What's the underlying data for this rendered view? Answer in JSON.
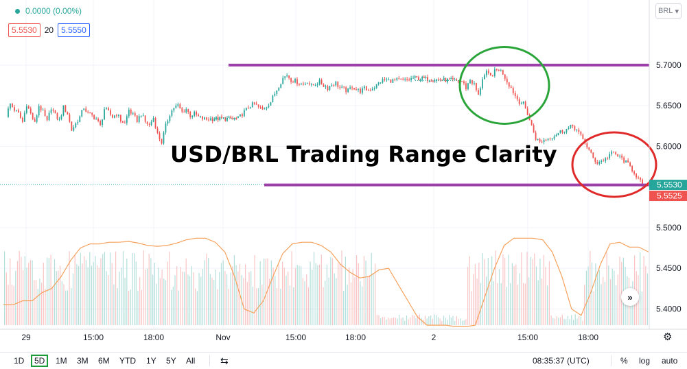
{
  "legend": {
    "change": "0.0000 (0.00%)"
  },
  "indicators": {
    "ma_left": "5.5530",
    "ma_length": "20",
    "ma_right": "5.5550"
  },
  "currency_button": "BRL",
  "annotation_title": "USD/BRL Trading Range Clarity",
  "toolbar": {
    "ranges": [
      "1D",
      "5D",
      "1M",
      "3M",
      "6M",
      "YTD",
      "1Y",
      "5Y",
      "All"
    ],
    "active_range": "5D",
    "clock": "08:35:37 (UTC)",
    "percent": "%",
    "log": "log",
    "auto": "auto"
  },
  "chart_data": {
    "type": "candlestick",
    "title": "USD/BRL Trading Range Clarity",
    "x_tick_labels": [
      "29",
      "15:00",
      "18:00",
      "Nov",
      "15:00",
      "18:00",
      "2",
      "15:00",
      "18:00"
    ],
    "y_tick_labels": [
      "5.7000",
      "5.6500",
      "5.6000",
      "5.5000",
      "5.4500",
      "5.4000"
    ],
    "ylim": [
      5.375,
      5.78
    ],
    "price_labels": [
      {
        "value": 5.553,
        "text": "5.5530",
        "color": "#26a69a"
      },
      {
        "value": 5.5525,
        "text": "5.5525",
        "color": "#ef5350"
      }
    ],
    "horizontal_lines": [
      {
        "value": 5.7,
        "color": "#9c3fa8"
      },
      {
        "value": 5.5525,
        "color": "#9c3fa8"
      }
    ],
    "circles": [
      {
        "color": "#2aa53a",
        "center_value": 5.675
      },
      {
        "color": "#e02a2a",
        "center_value": 5.5775
      }
    ],
    "close_path": [
      5.638,
      5.652,
      5.645,
      5.64,
      5.63,
      5.652,
      5.64,
      5.628,
      5.65,
      5.642,
      5.63,
      5.648,
      5.638,
      5.632,
      5.648,
      5.64,
      5.62,
      5.628,
      5.636,
      5.648,
      5.64,
      5.638,
      5.634,
      5.625,
      5.646,
      5.642,
      5.636,
      5.64,
      5.632,
      5.628,
      5.645,
      5.638,
      5.632,
      5.64,
      5.63,
      5.626,
      5.635,
      5.615,
      5.605,
      5.625,
      5.64,
      5.648,
      5.65,
      5.642,
      5.646,
      5.638,
      5.64,
      5.636,
      5.634,
      5.633,
      5.634,
      5.634,
      5.64,
      5.645,
      5.65,
      5.652,
      5.648,
      5.645,
      5.65,
      5.655,
      5.665,
      5.675,
      5.684,
      5.688,
      5.682,
      5.68,
      5.678,
      5.676,
      5.68,
      5.674,
      5.677,
      5.679,
      5.675,
      5.672,
      5.676,
      5.678,
      5.672,
      5.67,
      5.668,
      5.674,
      5.67,
      5.668,
      5.671,
      5.669,
      5.672,
      5.675,
      5.68,
      5.682,
      5.681,
      5.681,
      5.681,
      5.681,
      5.681,
      5.682,
      5.684,
      5.68,
      5.672,
      5.682,
      5.676,
      5.662,
      5.684,
      5.69,
      5.686,
      5.692,
      5.695,
      5.69,
      5.68,
      5.672,
      5.662,
      5.655,
      5.652,
      5.64,
      5.625,
      5.61,
      5.605,
      5.608,
      5.61,
      5.612,
      5.615,
      5.618,
      5.62,
      5.622,
      5.625,
      5.62,
      5.612,
      5.605,
      5.595,
      5.585,
      5.58,
      5.582,
      5.584,
      5.59,
      5.592,
      5.588,
      5.585,
      5.58,
      5.575,
      5.568,
      5.56,
      5.553
    ],
    "volume_ma_path": [
      5.405,
      5.405,
      5.41,
      5.41,
      5.42,
      5.425,
      5.44,
      5.46,
      5.475,
      5.48,
      5.48,
      5.482,
      5.482,
      5.483,
      5.481,
      5.478,
      5.477,
      5.478,
      5.481,
      5.485,
      5.487,
      5.487,
      5.482,
      5.47,
      5.44,
      5.4,
      5.395,
      5.41,
      5.44,
      5.468,
      5.48,
      5.482,
      5.482,
      5.478,
      5.47,
      5.455,
      5.445,
      5.438,
      5.44,
      5.448,
      5.45,
      5.43,
      5.41,
      5.39,
      5.38,
      5.38,
      5.38,
      5.378,
      5.378,
      5.38,
      5.415,
      5.45,
      5.478,
      5.487,
      5.487,
      5.487,
      5.485,
      5.47,
      5.44,
      5.4,
      5.392,
      5.42,
      5.455,
      5.48,
      5.482,
      5.476,
      5.476,
      5.47
    ]
  }
}
